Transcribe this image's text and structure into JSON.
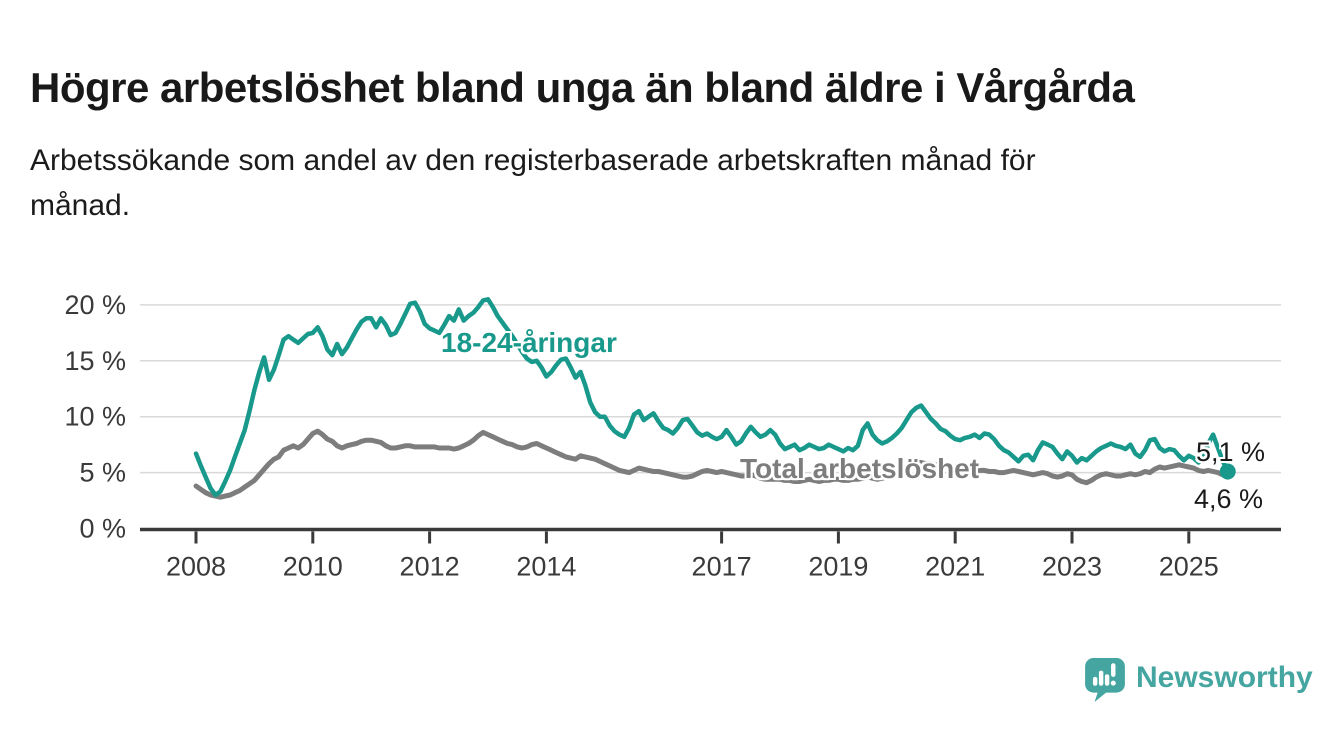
{
  "header": {
    "title": "Högre arbetslöshet bland unga än bland äldre i Vårgårda",
    "subtitle_lines": [
      "Arbetssökande som andel av den registerbaserade arbetskraften månad för",
      "månad."
    ]
  },
  "branding": {
    "logo_text": "Newsworthy",
    "logo_color": "#45a5a1",
    "logo_icon": "newsworthy-speech-bubble-bar-chart-icon"
  },
  "colors": {
    "youth_line": "#18998b",
    "total_line": "#7d7d7d",
    "gridline": "#d9d9d9",
    "axis": "#3a3a3a",
    "text": "#1a1a1a"
  },
  "chart_data": {
    "type": "line",
    "title": "Högre arbetslöshet bland unga än bland äldre i Vårgårda",
    "subtitle": "Arbetssökande som andel av den registerbaserade arbetskraften månad för månad.",
    "unit": "%",
    "x_interval": "monthly",
    "x_start": "2008-01",
    "x_end": "2025-09",
    "grid": "horizontal",
    "legend_position": "inline-labels",
    "ylim": [
      0,
      21.5
    ],
    "y_axis": {
      "ticks": [
        {
          "value": 0,
          "label": "0 %"
        },
        {
          "value": 5,
          "label": "5 %"
        },
        {
          "value": 10,
          "label": "10 %"
        },
        {
          "value": 15,
          "label": "15 %"
        },
        {
          "value": 20,
          "label": "20 %"
        }
      ]
    },
    "x_axis": {
      "ticks": [
        {
          "year": 2008,
          "label": "2008"
        },
        {
          "year": 2010,
          "label": "2010"
        },
        {
          "year": 2012,
          "label": "2012"
        },
        {
          "year": 2014,
          "label": "2014"
        },
        {
          "year": 2017,
          "label": "2017"
        },
        {
          "year": 2019,
          "label": "2019"
        },
        {
          "year": 2021,
          "label": "2021"
        },
        {
          "year": 2023,
          "label": "2023"
        },
        {
          "year": 2025,
          "label": "2025"
        }
      ]
    },
    "series": [
      {
        "name": "18-24-åringar",
        "color": "#18998b",
        "end_label": "5,1 %",
        "end_value": 5.1,
        "end_marker": true,
        "values": [
          6.7,
          5.6,
          4.6,
          3.6,
          3.0,
          3.3,
          4.2,
          5.2,
          6.4,
          7.6,
          8.8,
          10.5,
          12.4,
          14.0,
          15.3,
          13.3,
          14.2,
          15.5,
          16.9,
          17.2,
          16.9,
          16.6,
          17.0,
          17.4,
          17.5,
          18.0,
          17.2,
          16.0,
          15.5,
          16.5,
          15.6,
          16.2,
          17.0,
          17.8,
          18.5,
          18.8,
          18.8,
          18.0,
          18.8,
          18.2,
          17.3,
          17.5,
          18.3,
          19.2,
          20.1,
          20.2,
          19.4,
          18.3,
          17.9,
          17.7,
          17.5,
          18.2,
          19.0,
          18.6,
          19.6,
          18.6,
          19.0,
          19.3,
          19.8,
          20.4,
          20.5,
          19.8,
          19.0,
          18.4,
          17.8,
          17.2,
          16.5,
          15.8,
          15.2,
          14.9,
          15.0,
          14.4,
          13.6,
          14.0,
          14.6,
          15.1,
          15.2,
          14.4,
          13.5,
          14.0,
          12.8,
          11.3,
          10.4,
          10.0,
          10.0,
          9.2,
          8.7,
          8.4,
          8.2,
          9.0,
          10.2,
          10.5,
          9.7,
          10.0,
          10.3,
          9.6,
          9.0,
          8.8,
          8.5,
          9.0,
          9.7,
          9.8,
          9.2,
          8.6,
          8.3,
          8.5,
          8.2,
          8.0,
          8.2,
          8.8,
          8.2,
          7.5,
          7.8,
          8.5,
          9.1,
          8.6,
          8.2,
          8.4,
          8.8,
          8.4,
          7.6,
          7.1,
          7.3,
          7.5,
          7.0,
          7.2,
          7.5,
          7.3,
          7.1,
          7.2,
          7.5,
          7.3,
          7.1,
          6.9,
          7.2,
          7.0,
          7.4,
          8.8,
          9.4,
          8.4,
          7.9,
          7.6,
          7.8,
          8.1,
          8.5,
          9.0,
          9.7,
          10.4,
          10.8,
          11.0,
          10.4,
          9.8,
          9.4,
          8.9,
          8.7,
          8.3,
          8.0,
          7.9,
          8.1,
          8.2,
          8.4,
          8.1,
          8.5,
          8.4,
          8.0,
          7.4,
          7.0,
          6.8,
          6.4,
          6.0,
          6.5,
          6.6,
          6.1,
          7.0,
          7.7,
          7.5,
          7.3,
          6.7,
          6.2,
          6.9,
          6.5,
          5.9,
          6.3,
          6.1,
          6.5,
          6.9,
          7.2,
          7.4,
          7.6,
          7.4,
          7.3,
          7.1,
          7.5,
          6.7,
          6.4,
          7.0,
          7.9,
          8.0,
          7.2,
          6.9,
          7.1,
          7.0,
          6.5,
          6.1,
          6.5,
          6.3,
          5.9,
          6.3,
          7.6,
          8.4,
          7.2,
          6.0,
          5.1
        ]
      },
      {
        "name": "Total arbetslöshet",
        "color": "#7d7d7d",
        "end_label": "4,6 %",
        "end_value": 4.6,
        "end_marker": false,
        "values": [
          3.8,
          3.5,
          3.2,
          3.0,
          2.9,
          2.8,
          2.9,
          3.0,
          3.2,
          3.4,
          3.7,
          4.0,
          4.3,
          4.8,
          5.3,
          5.8,
          6.2,
          6.4,
          7.0,
          7.2,
          7.4,
          7.2,
          7.5,
          8.0,
          8.5,
          8.7,
          8.4,
          8.0,
          7.8,
          7.4,
          7.2,
          7.4,
          7.5,
          7.6,
          7.8,
          7.9,
          7.9,
          7.8,
          7.7,
          7.4,
          7.2,
          7.2,
          7.3,
          7.4,
          7.4,
          7.3,
          7.3,
          7.3,
          7.3,
          7.3,
          7.2,
          7.2,
          7.2,
          7.1,
          7.2,
          7.4,
          7.6,
          7.9,
          8.3,
          8.6,
          8.4,
          8.2,
          8.0,
          7.8,
          7.6,
          7.5,
          7.3,
          7.2,
          7.3,
          7.5,
          7.6,
          7.4,
          7.2,
          7.0,
          6.8,
          6.6,
          6.4,
          6.3,
          6.2,
          6.5,
          6.4,
          6.3,
          6.2,
          6.0,
          5.8,
          5.6,
          5.4,
          5.2,
          5.1,
          5.0,
          5.2,
          5.4,
          5.3,
          5.2,
          5.1,
          5.1,
          5.0,
          4.9,
          4.8,
          4.7,
          4.6,
          4.6,
          4.7,
          4.9,
          5.1,
          5.2,
          5.1,
          5.0,
          5.1,
          5.0,
          4.9,
          4.8,
          4.7,
          4.7,
          4.8,
          4.7,
          4.5,
          4.4,
          4.4,
          4.4,
          4.4,
          4.3,
          4.3,
          4.2,
          4.2,
          4.3,
          4.4,
          4.3,
          4.2,
          4.3,
          4.3,
          4.4,
          4.4,
          4.3,
          4.3,
          4.4,
          4.4,
          4.5,
          4.6,
          4.5,
          4.4,
          4.5,
          4.6,
          4.8,
          5.0,
          5.2,
          5.5,
          5.8,
          5.9,
          5.9,
          5.8,
          5.8,
          5.7,
          5.6,
          5.6,
          5.5,
          5.5,
          5.4,
          5.4,
          5.3,
          5.3,
          5.2,
          5.2,
          5.1,
          5.1,
          5.0,
          5.0,
          5.1,
          5.2,
          5.1,
          5.0,
          4.9,
          4.8,
          4.9,
          5.0,
          4.9,
          4.7,
          4.6,
          4.7,
          4.9,
          4.8,
          4.4,
          4.2,
          4.1,
          4.3,
          4.6,
          4.8,
          4.9,
          4.8,
          4.7,
          4.7,
          4.8,
          4.9,
          4.8,
          4.9,
          5.1,
          5.0,
          5.3,
          5.5,
          5.4,
          5.5,
          5.6,
          5.7,
          5.6,
          5.5,
          5.4,
          5.2,
          5.1,
          5.2,
          5.1,
          5.0,
          4.8,
          4.6
        ]
      }
    ]
  }
}
